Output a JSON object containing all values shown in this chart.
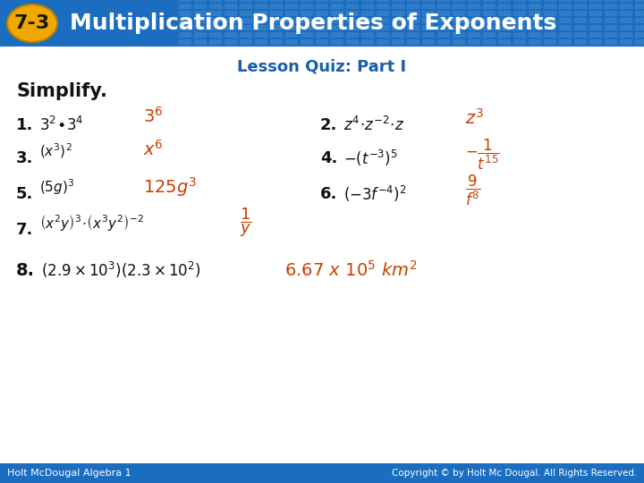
{
  "title_number": "7-3",
  "title_text": "Multiplication Properties of Exponents",
  "subtitle": "Lesson Quiz: Part I",
  "header_bg_color": "#1b6dbf",
  "header_text_color": "#ffffff",
  "badge_bg_color": "#f0a800",
  "badge_text_color": "#1a1a00",
  "body_bg_color": "#ffffff",
  "footer_bg_color": "#1b6dbf",
  "footer_left": "Holt McDougal Algebra 1",
  "footer_right": "Copyright © by Holt Mc Dougal. All Rights Reserved.",
  "footer_text_color": "#ffffff",
  "simplify_label": "Simplify.",
  "orange_color": "#c84000",
  "blue_color": "#1a5fa8",
  "dark_text": "#111111",
  "grid_color": "#3a8ad4"
}
